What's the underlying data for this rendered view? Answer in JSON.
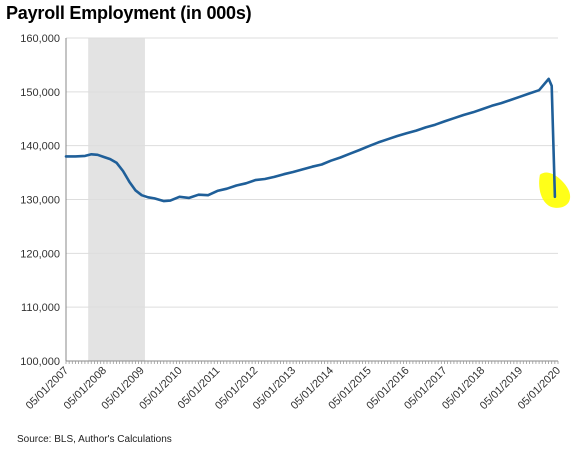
{
  "chart_data": {
    "type": "line",
    "title": "Payroll Employment (in 000s)",
    "source": "Source: BLS, Author's Calculations",
    "xlabel": "",
    "ylabel": "",
    "ylim": [
      100000,
      160000
    ],
    "yticks": [
      "160,000",
      "150,000",
      "140,000",
      "130,000",
      "120,000",
      "110,000",
      "100,000"
    ],
    "ytick_values": [
      160000,
      150000,
      140000,
      130000,
      120000,
      110000,
      100000
    ],
    "xticks": [
      "05/01/2007",
      "05/01/2008",
      "05/01/2009",
      "05/01/2010",
      "05/01/2011",
      "05/01/2012",
      "05/01/2013",
      "05/01/2014",
      "05/01/2015",
      "05/01/2016",
      "05/01/2017",
      "05/01/2018",
      "05/01/2019",
      "05/01/2020"
    ],
    "grid": true,
    "recession_shade": {
      "from": "2007-12-01",
      "to": "2009-06-01"
    },
    "highlight": {
      "at": "2020-04-01",
      "value": 130500,
      "color": "#ffff00"
    },
    "colors": {
      "line": "#1f5f99",
      "shade": "#e3e3e3",
      "grid": "#dddddd"
    },
    "series": [
      {
        "x": [
          "2007-05-01",
          "2007-08-01",
          "2007-11-01",
          "2008-01-01",
          "2008-03-01",
          "2008-05-01",
          "2008-07-01",
          "2008-09-01",
          "2008-11-01",
          "2009-01-01",
          "2009-03-01",
          "2009-05-01",
          "2009-07-01",
          "2009-09-01",
          "2009-12-01",
          "2010-02-01",
          "2010-05-01",
          "2010-08-01",
          "2010-11-01",
          "2011-02-01",
          "2011-05-01",
          "2011-08-01",
          "2011-11-01",
          "2012-02-01",
          "2012-05-01",
          "2012-08-01",
          "2012-11-01",
          "2013-02-01",
          "2013-05-01",
          "2013-08-01",
          "2013-11-01",
          "2014-02-01",
          "2014-05-01",
          "2014-08-01",
          "2014-11-01",
          "2015-02-01",
          "2015-05-01",
          "2015-08-01",
          "2015-11-01",
          "2016-02-01",
          "2016-05-01",
          "2016-08-01",
          "2016-11-01",
          "2017-02-01",
          "2017-05-01",
          "2017-08-01",
          "2017-11-01",
          "2018-02-01",
          "2018-05-01",
          "2018-08-01",
          "2018-11-01",
          "2019-02-01",
          "2019-05-01",
          "2019-08-01",
          "2019-11-01",
          "2020-02-01",
          "2020-03-01",
          "2020-04-01"
        ],
        "values": [
          138000,
          138000,
          138100,
          138400,
          138300,
          137900,
          137500,
          136800,
          135300,
          133300,
          131700,
          130800,
          130400,
          130200,
          129700,
          129800,
          130500,
          130300,
          130900,
          130800,
          131600,
          132000,
          132600,
          133000,
          133600,
          133800,
          134200,
          134700,
          135100,
          135600,
          136100,
          136500,
          137200,
          137800,
          138500,
          139200,
          139900,
          140600,
          141200,
          141800,
          142300,
          142800,
          143400,
          143900,
          144500,
          145100,
          145700,
          146200,
          146800,
          147400,
          147900,
          148500,
          149100,
          149700,
          150300,
          152400,
          151100,
          130500
        ]
      }
    ]
  }
}
